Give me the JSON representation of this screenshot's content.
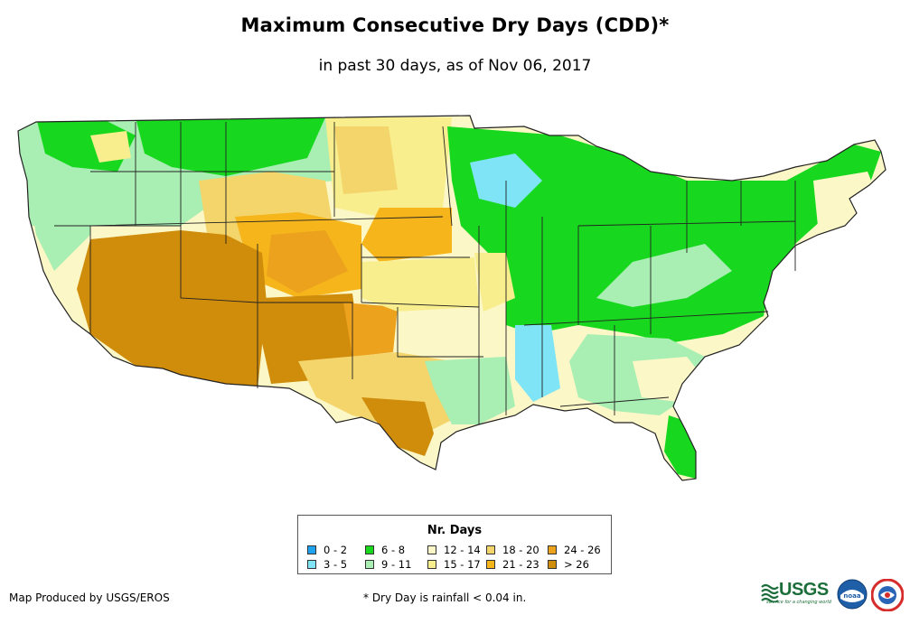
{
  "title": "Maximum Consecutive Dry Days (CDD)*",
  "subtitle": "in past 30 days, as of Nov 06, 2017",
  "legend": {
    "title": "Nr. Days",
    "items": [
      {
        "label": "0 - 2",
        "color": "#1ea3f0"
      },
      {
        "label": "3 - 5",
        "color": "#7fe4f5"
      },
      {
        "label": "6 - 8",
        "color": "#17d81e"
      },
      {
        "label": "9 - 11",
        "color": "#a9efb4"
      },
      {
        "label": "12 - 14",
        "color": "#fcf7c6"
      },
      {
        "label": "15 - 17",
        "color": "#f8ee8e"
      },
      {
        "label": "18 - 20",
        "color": "#f3d56b"
      },
      {
        "label": "21 - 23",
        "color": "#f5b51b"
      },
      {
        "label": "24 - 26",
        "color": "#eda21e"
      },
      {
        "label": "> 26",
        "color": "#d08c0b"
      }
    ]
  },
  "credit": "Map Produced by USGS/EROS",
  "footnote": "* Dry Day is rainfall < 0.04 in.",
  "logos": {
    "usgs": "USGS",
    "usgs_tagline": "science for a changing world",
    "noaa": "noaa"
  },
  "map_regions": {
    "west_coast": "9 - 11",
    "great_basin_california": "12 - 14",
    "desert_southwest": "> 26",
    "southern_rockies": "24 - 26",
    "colorado_plains": "21 - 23",
    "northern_plains": "18 - 20",
    "kansas_oklahoma": "15 - 17",
    "texas": "18 - 20",
    "south_texas": "> 26",
    "midwest_east": "6 - 8",
    "lower_mississippi": "3 - 5",
    "southeast_coast": "12 - 14",
    "new_england": "12 - 14"
  },
  "colors": {
    "border": "#222222",
    "background": "#ffffff"
  }
}
